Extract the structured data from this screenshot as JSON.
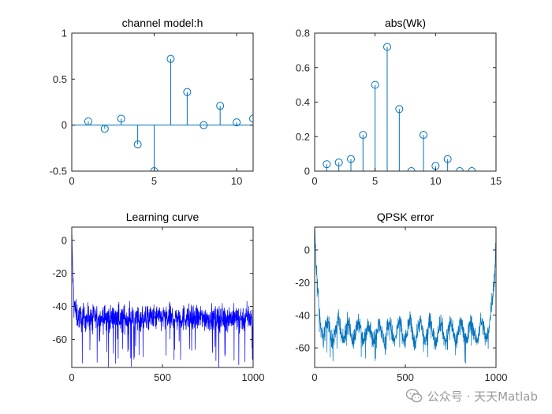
{
  "watermark": {
    "text": "公众号 · 天天Matlab",
    "icon": "wechat-icon"
  },
  "chart_data": [
    {
      "type": "stem",
      "title": "channel model:h",
      "xlim": [
        0,
        11
      ],
      "ylim": [
        -0.5,
        1
      ],
      "xticks": [
        0,
        5,
        10
      ],
      "yticks": [
        -0.5,
        0,
        0.5,
        1
      ],
      "ytick_labels": [
        "-0.5",
        "0",
        "0.5",
        "1"
      ],
      "x": [
        1,
        2,
        3,
        4,
        5,
        6,
        7,
        8,
        9,
        10,
        11
      ],
      "y": [
        0.04,
        -0.04,
        0.07,
        -0.21,
        -0.5,
        0.72,
        0.36,
        0.0,
        0.21,
        0.03,
        0.07
      ],
      "color": "#0072bd"
    },
    {
      "type": "stem",
      "title": "abs(Wk)",
      "xlim": [
        0,
        15
      ],
      "ylim": [
        0,
        0.8
      ],
      "xticks": [
        0,
        5,
        10,
        15
      ],
      "yticks": [
        0,
        0.2,
        0.4,
        0.6,
        0.8
      ],
      "ytick_labels": [
        "0",
        "0.2",
        "0.4",
        "0.6",
        "0.8"
      ],
      "x": [
        1,
        2,
        3,
        4,
        5,
        6,
        7,
        8,
        9,
        10,
        11,
        12,
        13
      ],
      "y": [
        0.04,
        0.05,
        0.07,
        0.21,
        0.5,
        0.72,
        0.36,
        0.0,
        0.21,
        0.03,
        0.07,
        0.0,
        0.0
      ],
      "color": "#0072bd"
    },
    {
      "type": "line",
      "title": "Learning curve",
      "xlim": [
        0,
        1000
      ],
      "ylim": [
        -77,
        8
      ],
      "xticks": [
        0,
        500,
        1000
      ],
      "yticks": [
        -60,
        -40,
        -20,
        0
      ],
      "ytick_labels": [
        "-60",
        "-40",
        "-20",
        "0"
      ],
      "n_points": 1000,
      "start_value": 3,
      "steady_state_mean": -47,
      "color": "#0000ff"
    },
    {
      "type": "line",
      "title": "QPSK error",
      "xlim": [
        0,
        1000
      ],
      "ylim": [
        -72,
        14
      ],
      "xticks": [
        0,
        500,
        1000
      ],
      "yticks": [
        -60,
        -40,
        -20,
        0
      ],
      "ytick_labels": [
        "-60",
        "-40",
        "-20",
        "0"
      ],
      "n_points": 1000,
      "edge_value": 14,
      "steady_state_mean": -50,
      "color": "#0072bd"
    }
  ]
}
